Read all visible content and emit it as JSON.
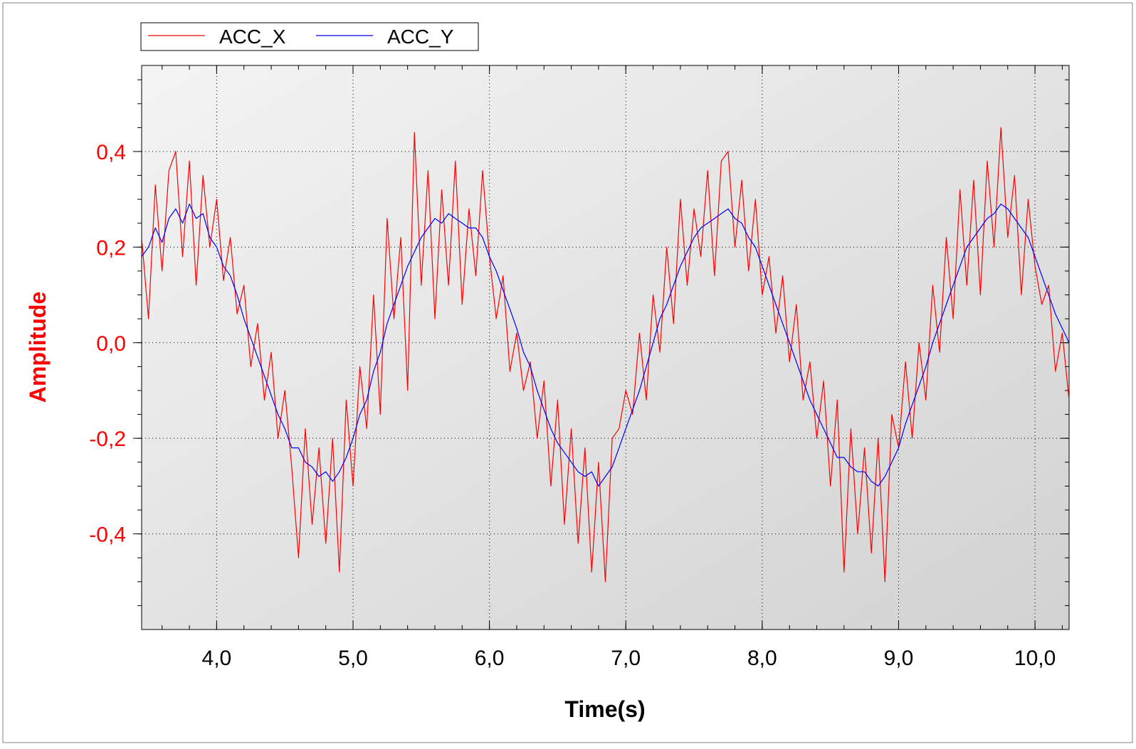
{
  "chart_data": {
    "type": "line",
    "title": "",
    "xlabel": "Time(s)",
    "ylabel": "Amplitude",
    "xlim": [
      3.45,
      10.25
    ],
    "ylim": [
      -0.6,
      0.58
    ],
    "x_ticks": [
      4.0,
      5.0,
      6.0,
      7.0,
      8.0,
      9.0,
      10.0
    ],
    "x_tick_labels": [
      "4,0",
      "5,0",
      "6,0",
      "7,0",
      "8,0",
      "9,0",
      "10,0"
    ],
    "y_ticks": [
      -0.4,
      -0.2,
      0.0,
      0.2,
      0.4
    ],
    "y_tick_labels": [
      "-0,4",
      "-0,2",
      "0,0",
      "0,2",
      "0,4"
    ],
    "grid": true,
    "legend_position": "top-left",
    "colors": {
      "ylabel": "#ff0000",
      "y_tick_labels": "#ff0000",
      "x_tick_labels": "#000000",
      "plot_background_start": "#f4f4f4",
      "plot_background_end": "#d2d2d2"
    },
    "series": [
      {
        "name": "ACC_X",
        "color": "#ff0000",
        "x": [
          3.45,
          3.5,
          3.55,
          3.6,
          3.65,
          3.7,
          3.75,
          3.8,
          3.85,
          3.9,
          3.95,
          4.0,
          4.05,
          4.1,
          4.15,
          4.2,
          4.25,
          4.3,
          4.35,
          4.4,
          4.45,
          4.5,
          4.55,
          4.6,
          4.65,
          4.7,
          4.75,
          4.8,
          4.85,
          4.9,
          4.95,
          5.0,
          5.05,
          5.1,
          5.15,
          5.2,
          5.25,
          5.3,
          5.35,
          5.4,
          5.45,
          5.5,
          5.55,
          5.6,
          5.65,
          5.7,
          5.75,
          5.8,
          5.85,
          5.9,
          5.95,
          6.0,
          6.05,
          6.1,
          6.15,
          6.2,
          6.25,
          6.3,
          6.35,
          6.4,
          6.45,
          6.5,
          6.55,
          6.6,
          6.65,
          6.7,
          6.75,
          6.8,
          6.85,
          6.9,
          6.95,
          7.0,
          7.05,
          7.1,
          7.15,
          7.2,
          7.25,
          7.3,
          7.35,
          7.4,
          7.45,
          7.5,
          7.55,
          7.6,
          7.65,
          7.7,
          7.75,
          7.8,
          7.85,
          7.9,
          7.95,
          8.0,
          8.05,
          8.1,
          8.15,
          8.2,
          8.25,
          8.3,
          8.35,
          8.4,
          8.45,
          8.5,
          8.55,
          8.6,
          8.65,
          8.7,
          8.75,
          8.8,
          8.85,
          8.9,
          8.95,
          9.0,
          9.05,
          9.1,
          9.15,
          9.2,
          9.25,
          9.3,
          9.35,
          9.4,
          9.45,
          9.5,
          9.55,
          9.6,
          9.65,
          9.7,
          9.75,
          9.8,
          9.85,
          9.9,
          9.95,
          10.0,
          10.05,
          10.1,
          10.15,
          10.2,
          10.25
        ],
        "values": [
          0.22,
          0.05,
          0.33,
          0.15,
          0.36,
          0.4,
          0.18,
          0.38,
          0.12,
          0.35,
          0.2,
          0.3,
          0.13,
          0.22,
          0.06,
          0.12,
          -0.05,
          0.04,
          -0.12,
          -0.02,
          -0.2,
          -0.1,
          -0.26,
          -0.45,
          -0.18,
          -0.38,
          -0.22,
          -0.42,
          -0.2,
          -0.48,
          -0.12,
          -0.3,
          -0.05,
          -0.18,
          0.1,
          -0.15,
          0.26,
          0.05,
          0.22,
          -0.1,
          0.44,
          0.12,
          0.36,
          0.05,
          0.32,
          0.12,
          0.38,
          0.08,
          0.28,
          0.14,
          0.36,
          0.18,
          0.05,
          0.14,
          -0.06,
          0.02,
          -0.1,
          -0.04,
          -0.2,
          -0.08,
          -0.3,
          -0.12,
          -0.38,
          -0.18,
          -0.42,
          -0.22,
          -0.48,
          -0.25,
          -0.5,
          -0.2,
          -0.18,
          -0.1,
          -0.15,
          0.02,
          -0.12,
          0.1,
          -0.02,
          0.2,
          0.04,
          0.3,
          0.12,
          0.28,
          0.18,
          0.36,
          0.14,
          0.38,
          0.4,
          0.2,
          0.34,
          0.15,
          0.3,
          0.1,
          0.18,
          0.02,
          0.14,
          -0.04,
          0.08,
          -0.12,
          -0.04,
          -0.2,
          -0.08,
          -0.3,
          -0.12,
          -0.48,
          -0.18,
          -0.4,
          -0.22,
          -0.44,
          -0.2,
          -0.5,
          -0.15,
          -0.22,
          -0.04,
          -0.2,
          0.0,
          -0.12,
          0.12,
          -0.02,
          0.22,
          0.05,
          0.32,
          0.12,
          0.34,
          0.1,
          0.38,
          0.2,
          0.45,
          0.22,
          0.35,
          0.1,
          0.3,
          0.16,
          0.08,
          0.12,
          -0.06,
          0.02,
          -0.12
        ]
      },
      {
        "name": "ACC_Y",
        "color": "#0000ff",
        "x": [
          3.45,
          3.5,
          3.55,
          3.6,
          3.65,
          3.7,
          3.75,
          3.8,
          3.85,
          3.9,
          3.95,
          4.0,
          4.05,
          4.1,
          4.15,
          4.2,
          4.25,
          4.3,
          4.35,
          4.4,
          4.45,
          4.5,
          4.55,
          4.6,
          4.65,
          4.7,
          4.75,
          4.8,
          4.85,
          4.9,
          4.95,
          5.0,
          5.05,
          5.1,
          5.15,
          5.2,
          5.25,
          5.3,
          5.35,
          5.4,
          5.45,
          5.5,
          5.55,
          5.6,
          5.65,
          5.7,
          5.75,
          5.8,
          5.85,
          5.9,
          5.95,
          6.0,
          6.05,
          6.1,
          6.15,
          6.2,
          6.25,
          6.3,
          6.35,
          6.4,
          6.45,
          6.5,
          6.55,
          6.6,
          6.65,
          6.7,
          6.75,
          6.8,
          6.85,
          6.9,
          6.95,
          7.0,
          7.05,
          7.1,
          7.15,
          7.2,
          7.25,
          7.3,
          7.35,
          7.4,
          7.45,
          7.5,
          7.55,
          7.6,
          7.65,
          7.7,
          7.75,
          7.8,
          7.85,
          7.9,
          7.95,
          8.0,
          8.05,
          8.1,
          8.15,
          8.2,
          8.25,
          8.3,
          8.35,
          8.4,
          8.45,
          8.5,
          8.55,
          8.6,
          8.65,
          8.7,
          8.75,
          8.8,
          8.85,
          8.9,
          8.95,
          9.0,
          9.05,
          9.1,
          9.15,
          9.2,
          9.25,
          9.3,
          9.35,
          9.4,
          9.45,
          9.5,
          9.55,
          9.6,
          9.65,
          9.7,
          9.75,
          9.8,
          9.85,
          9.9,
          9.95,
          10.0,
          10.05,
          10.1,
          10.15,
          10.2,
          10.25
        ],
        "values": [
          0.18,
          0.2,
          0.24,
          0.21,
          0.26,
          0.28,
          0.25,
          0.29,
          0.26,
          0.27,
          0.22,
          0.2,
          0.16,
          0.14,
          0.1,
          0.05,
          0.01,
          -0.03,
          -0.07,
          -0.11,
          -0.15,
          -0.18,
          -0.22,
          -0.22,
          -0.25,
          -0.26,
          -0.28,
          -0.27,
          -0.29,
          -0.27,
          -0.24,
          -0.2,
          -0.15,
          -0.12,
          -0.06,
          -0.02,
          0.04,
          0.08,
          0.12,
          0.16,
          0.19,
          0.22,
          0.24,
          0.26,
          0.25,
          0.27,
          0.26,
          0.25,
          0.24,
          0.24,
          0.22,
          0.18,
          0.15,
          0.11,
          0.07,
          0.03,
          -0.02,
          -0.05,
          -0.1,
          -0.14,
          -0.18,
          -0.21,
          -0.23,
          -0.25,
          -0.27,
          -0.28,
          -0.27,
          -0.3,
          -0.28,
          -0.26,
          -0.22,
          -0.18,
          -0.14,
          -0.1,
          -0.05,
          0.0,
          0.05,
          0.08,
          0.12,
          0.16,
          0.19,
          0.22,
          0.24,
          0.25,
          0.26,
          0.27,
          0.28,
          0.26,
          0.25,
          0.22,
          0.2,
          0.16,
          0.12,
          0.08,
          0.04,
          0.0,
          -0.04,
          -0.08,
          -0.12,
          -0.15,
          -0.18,
          -0.21,
          -0.24,
          -0.24,
          -0.26,
          -0.27,
          -0.27,
          -0.29,
          -0.3,
          -0.28,
          -0.25,
          -0.22,
          -0.17,
          -0.13,
          -0.09,
          -0.05,
          0.0,
          0.04,
          0.08,
          0.12,
          0.16,
          0.2,
          0.22,
          0.24,
          0.26,
          0.27,
          0.29,
          0.28,
          0.26,
          0.24,
          0.22,
          0.18,
          0.14,
          0.1,
          0.06,
          0.03,
          0.0
        ]
      }
    ]
  }
}
